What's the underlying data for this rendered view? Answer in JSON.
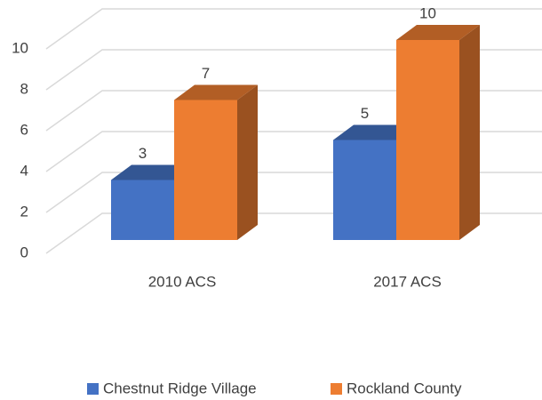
{
  "chart_data": {
    "type": "bar3d",
    "categories": [
      "2010 ACS",
      "2017 ACS"
    ],
    "series": [
      {
        "name": "Chestnut Ridge Village",
        "color": "#4472c4",
        "values": [
          3,
          5
        ]
      },
      {
        "name": "Rockland County",
        "color": "#ed7d31",
        "values": [
          7,
          10
        ]
      }
    ],
    "ylim": [
      0,
      10
    ],
    "yticks": [
      0,
      2,
      4,
      6,
      8,
      10
    ],
    "grid": true,
    "legend": "bottom"
  }
}
